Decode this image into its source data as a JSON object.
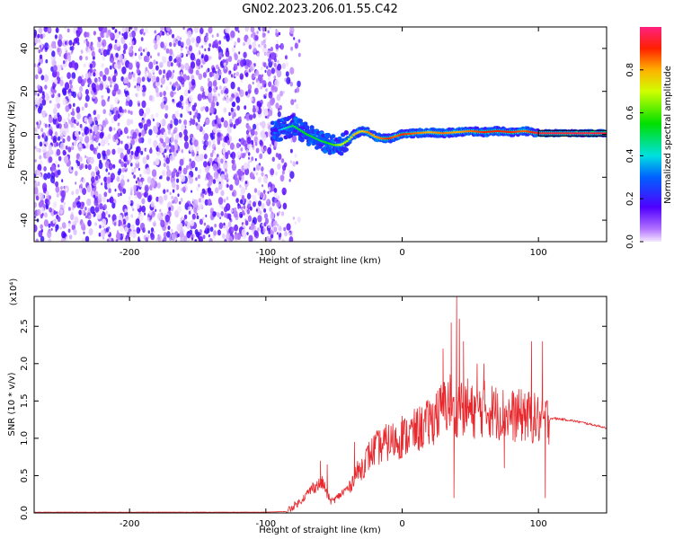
{
  "title": "GN02.2023.206.01.55.C42",
  "chart_data": [
    {
      "type": "heatmap",
      "xlabel": "Height of straight line (km)",
      "ylabel": "Frequency (Hz)",
      "xlim": [
        -270,
        150
      ],
      "ylim": [
        -50,
        50
      ],
      "x_ticks": [
        -200,
        -100,
        0,
        100
      ],
      "y_ticks": [
        -40,
        -20,
        0,
        20,
        40
      ],
      "colorbar": {
        "label": "Normalized spectral amplitude",
        "ticks": [
          "0.0",
          "0.2",
          "0.4",
          "0.6",
          "0.8"
        ],
        "range": [
          0,
          1
        ]
      },
      "noise_region_x": [
        -270,
        -90
      ],
      "ridge": {
        "x": [
          -90,
          -80,
          -70,
          -60,
          -50,
          -45,
          -40,
          -35,
          -30,
          -25,
          -20,
          -15,
          -10,
          -5,
          0,
          10,
          20,
          30,
          40,
          50,
          60,
          70,
          80,
          90,
          100,
          120,
          150
        ],
        "frequency": [
          2,
          4,
          0,
          -3,
          -5,
          -5,
          -3,
          0,
          1.5,
          1,
          -1,
          -2,
          -2,
          -1,
          0,
          0.5,
          1,
          0.5,
          1,
          1.5,
          1,
          1.5,
          1,
          1.5,
          0.5,
          0.5,
          0.5
        ],
        "amplitude": [
          0.35,
          0.5,
          0.55,
          0.5,
          0.6,
          0.7,
          0.65,
          0.8,
          0.75,
          0.85,
          0.8,
          0.85,
          0.9,
          0.85,
          0.9,
          0.85,
          0.8,
          0.85,
          0.8,
          0.85,
          0.9,
          0.9,
          0.9,
          0.85,
          0.95,
          0.95,
          0.95
        ]
      }
    },
    {
      "type": "line",
      "xlabel": "Height of straight line (km)",
      "ylabel": "SNR (10 * v/v)",
      "y_multiplier_label": "(x10⁴)",
      "xlim": [
        -270,
        150
      ],
      "ylim": [
        0,
        2.9
      ],
      "x_ticks": [
        -200,
        -100,
        0,
        100
      ],
      "y_ticks": [
        "0.0",
        "0.5",
        "1.0",
        "1.5",
        "2.0",
        "2.5"
      ],
      "series": [
        {
          "color": "#e8282d",
          "x": [
            -270,
            -200,
            -100,
            -85,
            -75,
            -65,
            -58,
            -55,
            -52,
            -48,
            -42,
            -38,
            -35,
            -30,
            -25,
            -20,
            -10,
            0,
            10,
            20,
            25,
            30,
            35,
            38,
            40,
            43,
            46,
            50,
            60,
            70,
            80,
            90,
            100,
            103,
            105,
            107,
            110,
            120,
            130,
            140,
            150
          ],
          "snr": [
            0.01,
            0.01,
            0.01,
            0.02,
            0.15,
            0.35,
            0.4,
            0.25,
            0.15,
            0.2,
            0.3,
            0.35,
            0.5,
            0.6,
            0.75,
            0.85,
            0.95,
            1.0,
            1.1,
            1.2,
            1.3,
            1.4,
            1.5,
            1.3,
            1.4,
            1.5,
            1.35,
            1.35,
            1.4,
            1.35,
            1.3,
            1.3,
            1.25,
            1.2,
            1.25,
            1.25,
            1.27,
            1.25,
            1.22,
            1.18,
            1.14
          ],
          "spikes": [
            {
              "x": -60,
              "snr": 0.7
            },
            {
              "x": -55,
              "snr": 0.65
            },
            {
              "x": -40,
              "snr": 0.35
            },
            {
              "x": -35,
              "snr": 0.95
            },
            {
              "x": -20,
              "snr": 1.05
            },
            {
              "x": 0,
              "snr": 1.3
            },
            {
              "x": 20,
              "snr": 1.5
            },
            {
              "x": 25,
              "snr": 1.6
            },
            {
              "x": 30,
              "snr": 2.2
            },
            {
              "x": 36,
              "snr": 2.55
            },
            {
              "x": 38,
              "snr": 0.2
            },
            {
              "x": 40,
              "snr": 2.9
            },
            {
              "x": 42,
              "snr": 2.6
            },
            {
              "x": 45,
              "snr": 2.3
            },
            {
              "x": 48,
              "snr": 1.8
            },
            {
              "x": 55,
              "snr": 2.0
            },
            {
              "x": 60,
              "snr": 2.0
            },
            {
              "x": 70,
              "snr": 1.6
            },
            {
              "x": 75,
              "snr": 0.6
            },
            {
              "x": 80,
              "snr": 1.3
            },
            {
              "x": 90,
              "snr": 1.6
            },
            {
              "x": 95,
              "snr": 2.3
            },
            {
              "x": 103,
              "snr": 2.3
            },
            {
              "x": 105,
              "snr": 0.2
            }
          ]
        }
      ]
    }
  ]
}
